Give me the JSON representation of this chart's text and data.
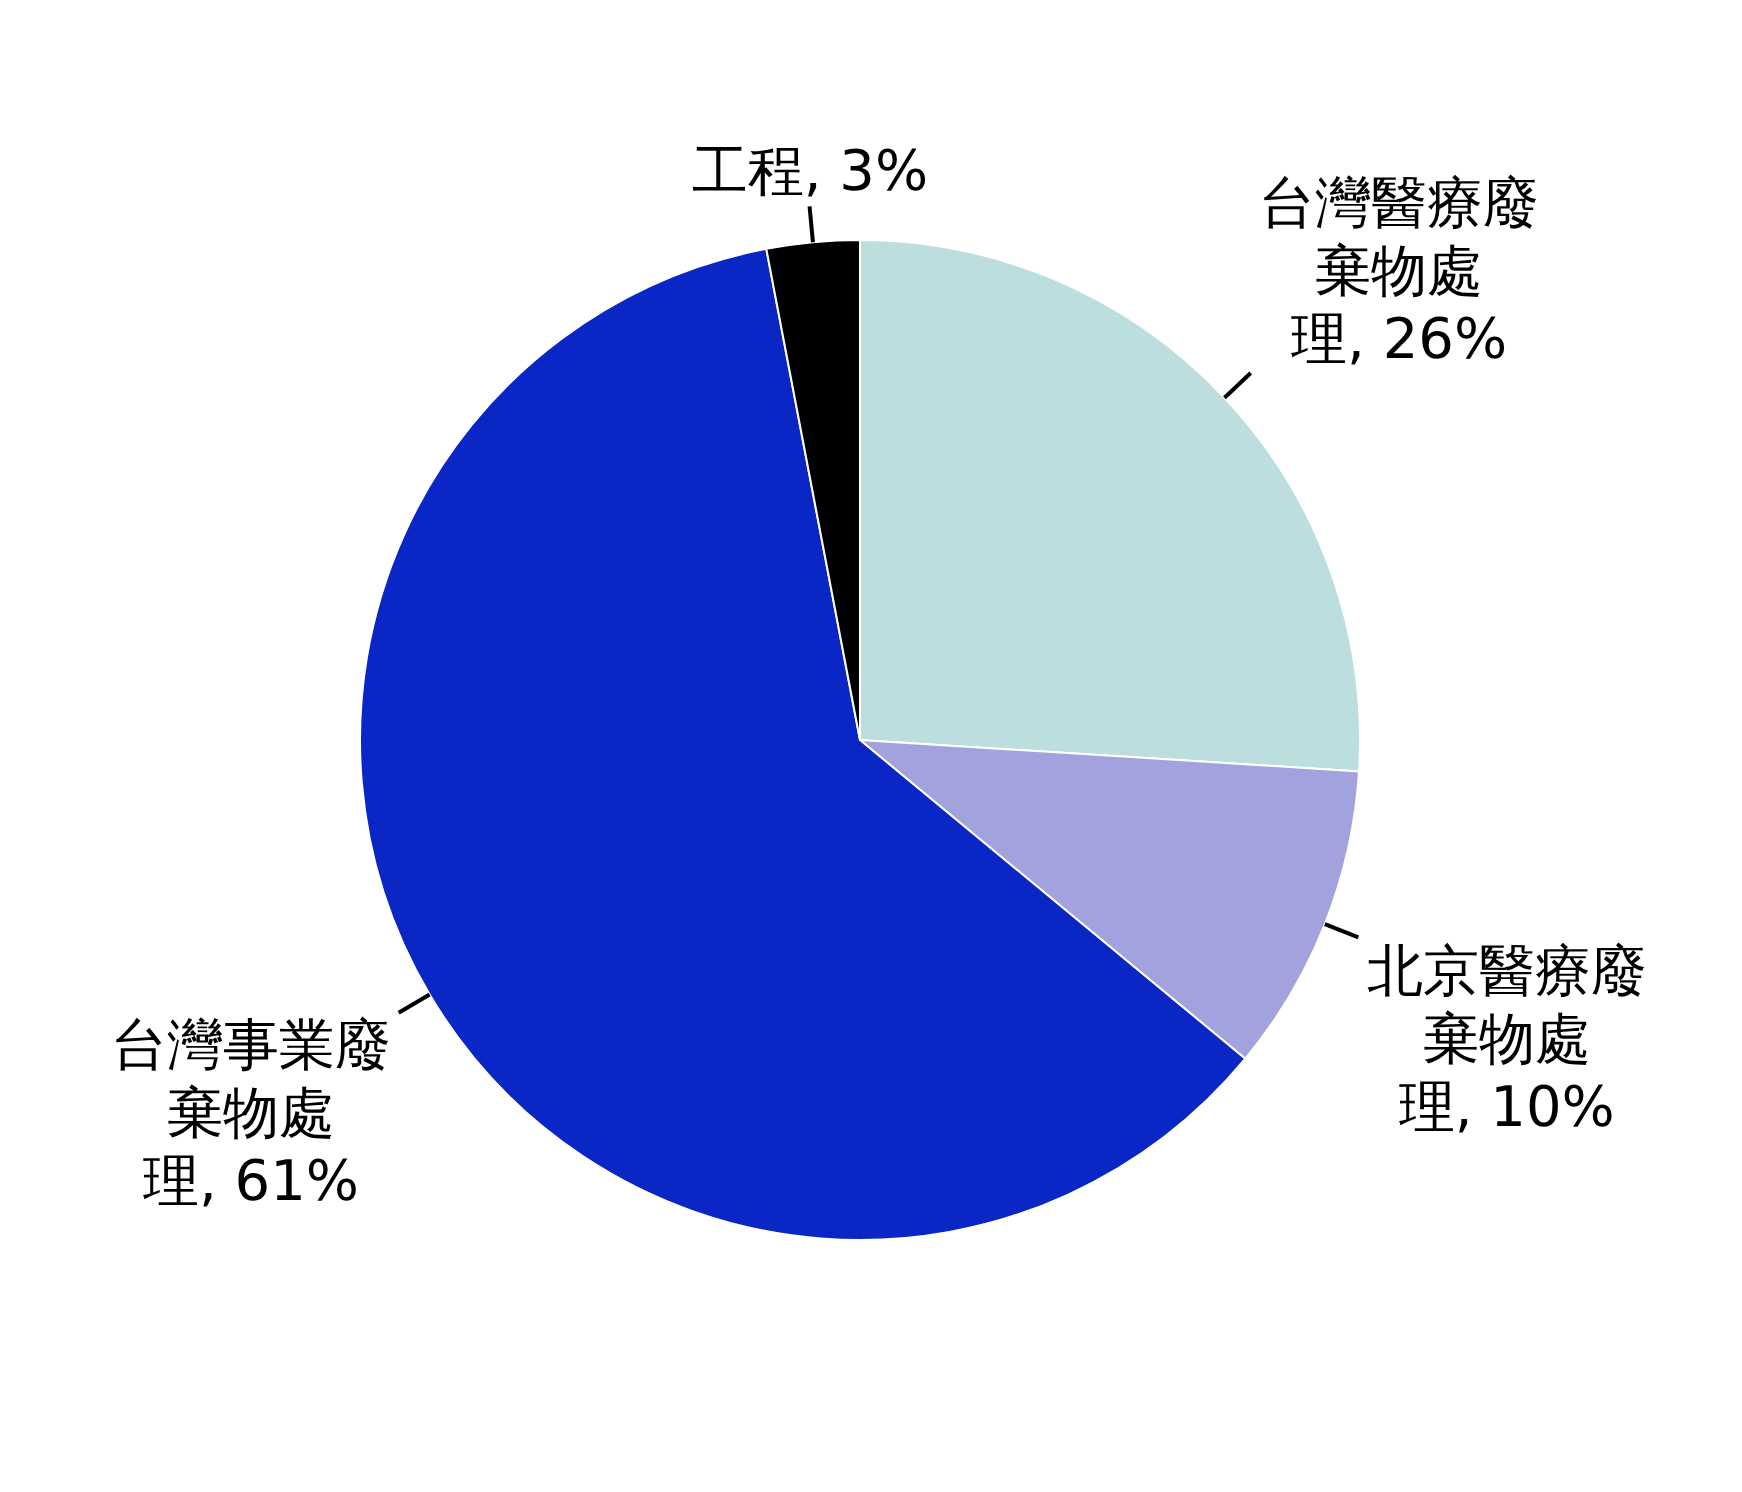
{
  "chart_data": {
    "type": "pie",
    "categories": [
      "台灣醫療廢棄物處理",
      "北京醫療廢棄物處理",
      "台灣事業廢棄物處理",
      "工程"
    ],
    "values": [
      26,
      10,
      61,
      3
    ],
    "colors": [
      "#bcdede",
      "#a2a2de",
      "#0a26c4",
      "#000000"
    ],
    "value_labels": [
      "26%",
      "10%",
      "61%",
      "3%"
    ]
  }
}
